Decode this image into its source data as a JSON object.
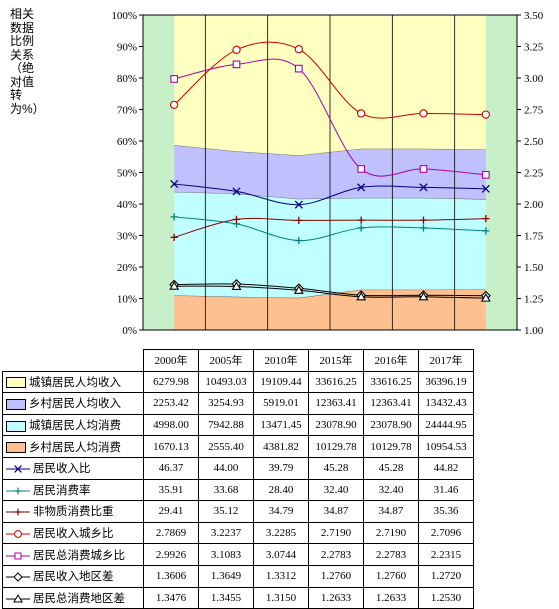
{
  "y_axis_label": "相关数据比例关系（绝对值转为%）",
  "chart_data": {
    "type": "area",
    "categories": [
      "2000年",
      "2005年",
      "2010年",
      "2015年",
      "2016年",
      "2017年"
    ],
    "left_axis": {
      "ylim": [
        0,
        100
      ],
      "ticks": [
        "0%",
        "10%",
        "20%",
        "30%",
        "40%",
        "50%",
        "60%",
        "70%",
        "80%",
        "90%",
        "100%"
      ]
    },
    "right_axis": {
      "ylim": [
        1.0,
        3.5
      ],
      "ticks": [
        "1.00",
        "1.25",
        "1.50",
        "1.75",
        "2.00",
        "2.25",
        "2.50",
        "2.75",
        "3.00",
        "3.25",
        "3.50"
      ]
    },
    "series": [
      {
        "name": "城镇居民人均收入",
        "kind": "area",
        "color": "#ffffc0",
        "values": [
          6279.98,
          10493.03,
          19109.44,
          33616.25,
          33616.25,
          36396.19
        ],
        "display": [
          "6279.98",
          "10493.03",
          "19109.44",
          "33616.25",
          "33616.25",
          "36396.19"
        ]
      },
      {
        "name": "乡村居民人均收入",
        "kind": "area",
        "color": "#c0c0ff",
        "values": [
          2253.42,
          3254.93,
          5919.01,
          12363.41,
          12363.41,
          13432.43
        ],
        "display": [
          "2253.42",
          "3254.93",
          "5919.01",
          "12363.41",
          "12363.41",
          "13432.43"
        ]
      },
      {
        "name": "城镇居民人均消费",
        "kind": "area",
        "color": "#c0ffff",
        "values": [
          4998.0,
          7942.88,
          13471.45,
          23078.9,
          23078.9,
          24444.95
        ],
        "display": [
          "4998.00",
          "7942.88",
          "13471.45",
          "23078.90",
          "23078.90",
          "24444.95"
        ]
      },
      {
        "name": "乡村居民人均消费",
        "kind": "area",
        "color": "#ffc090",
        "values": [
          1670.13,
          2555.4,
          4381.82,
          10129.78,
          10129.78,
          10954.53
        ],
        "display": [
          "1670.13",
          "2555.40",
          "4381.82",
          "10129.78",
          "10129.78",
          "10954.53"
        ]
      },
      {
        "name": "居民收入比",
        "kind": "line",
        "axis": "left",
        "color": "#000080",
        "marker": "x",
        "values": [
          46.37,
          44.0,
          39.79,
          45.28,
          45.28,
          44.82
        ],
        "display": [
          "46.37",
          "44.00",
          "39.79",
          "45.28",
          "45.28",
          "44.82"
        ]
      },
      {
        "name": "居民消费率",
        "kind": "line",
        "axis": "left",
        "color": "#008080",
        "marker": "plus",
        "values": [
          35.91,
          33.68,
          28.4,
          32.4,
          32.4,
          31.46
        ],
        "display": [
          "35.91",
          "33.68",
          "28.40",
          "32.40",
          "32.40",
          "31.46"
        ]
      },
      {
        "name": "非物质消费比重",
        "kind": "line",
        "axis": "left",
        "color": "#800000",
        "marker": "plus",
        "values": [
          29.41,
          35.12,
          34.79,
          34.87,
          34.87,
          35.36
        ],
        "display": [
          "29.41",
          "35.12",
          "34.79",
          "34.87",
          "34.87",
          "35.36"
        ]
      },
      {
        "name": "居民收入城乡比",
        "kind": "line",
        "axis": "right",
        "color": "#cc0000",
        "marker": "circle",
        "values": [
          2.7869,
          3.2237,
          3.2285,
          2.719,
          2.719,
          2.7096
        ],
        "display": [
          "2.7869",
          "3.2237",
          "3.2285",
          "2.7190",
          "2.7190",
          "2.7096"
        ]
      },
      {
        "name": "居民总消费城乡比",
        "kind": "line",
        "axis": "right",
        "color": "#aa00aa",
        "marker": "square",
        "values": [
          2.9926,
          3.1083,
          3.0744,
          2.2783,
          2.2783,
          2.2315
        ],
        "display": [
          "2.9926",
          "3.1083",
          "3.0744",
          "2.2783",
          "2.2783",
          "2.2315"
        ]
      },
      {
        "name": "居民收入地区差",
        "kind": "line",
        "axis": "right",
        "color": "#000000",
        "marker": "diamond",
        "values": [
          1.3606,
          1.3649,
          1.3312,
          1.276,
          1.276,
          1.272
        ],
        "display": [
          "1.3606",
          "1.3649",
          "1.3312",
          "1.2760",
          "1.2760",
          "1.2720"
        ]
      },
      {
        "name": "居民总消费地区差",
        "kind": "line",
        "axis": "right",
        "color": "#000000",
        "marker": "triangle",
        "values": [
          1.3476,
          1.3455,
          1.315,
          1.2633,
          1.2633,
          1.253
        ],
        "display": [
          "1.3476",
          "1.3455",
          "1.3150",
          "1.2633",
          "1.2633",
          "1.2530"
        ]
      }
    ]
  }
}
